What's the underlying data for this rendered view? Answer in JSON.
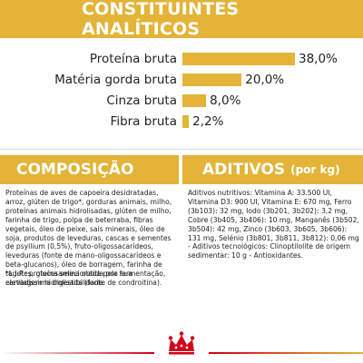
{
  "header": {
    "title": "CONSTITUINTES ANALÍTICOS"
  },
  "chart_data": {
    "type": "bar",
    "orientation": "horizontal",
    "categories": [
      "Proteína bruta",
      "Matéria gorda bruta",
      "Cinza bruta",
      "Fibra bruta"
    ],
    "values": [
      38.0,
      20.0,
      8.0,
      2.2
    ],
    "value_labels": [
      "38,0%",
      "20,0%",
      "8,0%",
      "2,2%"
    ],
    "unit": "%",
    "xlim": [
      0,
      40
    ],
    "bar_color": "#e3b437",
    "grid": false,
    "legend": "none"
  },
  "composition": {
    "title": "COMPOSIÇÃO",
    "text": "Proteínas de aves de capoeira desidratadas, arroz, glúten de trigo*, gorduras animais, milho, proteínas animais hidrolisadas, glúten de milho, farinha de trigo, polpa de beterraba, fibras vegetais, óleo de peixe, sais minerais, óleo de soja, produtos de leveduras, cascas e sementes de psyllium (0,5%), fruto-oligossacarídeos, leveduras (fonte de mano-oligossacarídeos e beta-glucanos), óleo de borragem, farinha de tagetes, glucosamina obtida por fermentação, cartilagem hidrolisada (fonte de condroitina).",
    "note": "*L.I.P.: proteína selecionada pela sua elevadíssima digestibilidade."
  },
  "additives": {
    "title": "ADITIVOS",
    "unit": "(por kg)",
    "text": "Aditivos nutritivos: Vitamina A: 33.500 UI, Vitamina D3: 900 UI, Vitamina E: 670 mg, Ferro (3b103): 32 mg, Iodo (3b201, 3b202): 3,2 mg, Cobre (3b405, 3b406): 10 mg, Manganês (3b502, 3b504): 42 mg, Zinco (3b603, 3b605, 3b606): 131 mg, Selénio (3b801, 3b811, 3b812): 0,06 mg - Aditivos tecnológicos: Clinoptilolite de origem sedimentar: 10 g - Antioxidantes."
  },
  "footer": {
    "logo": "royal-crown-logo",
    "accent_color": "#d4001a"
  }
}
